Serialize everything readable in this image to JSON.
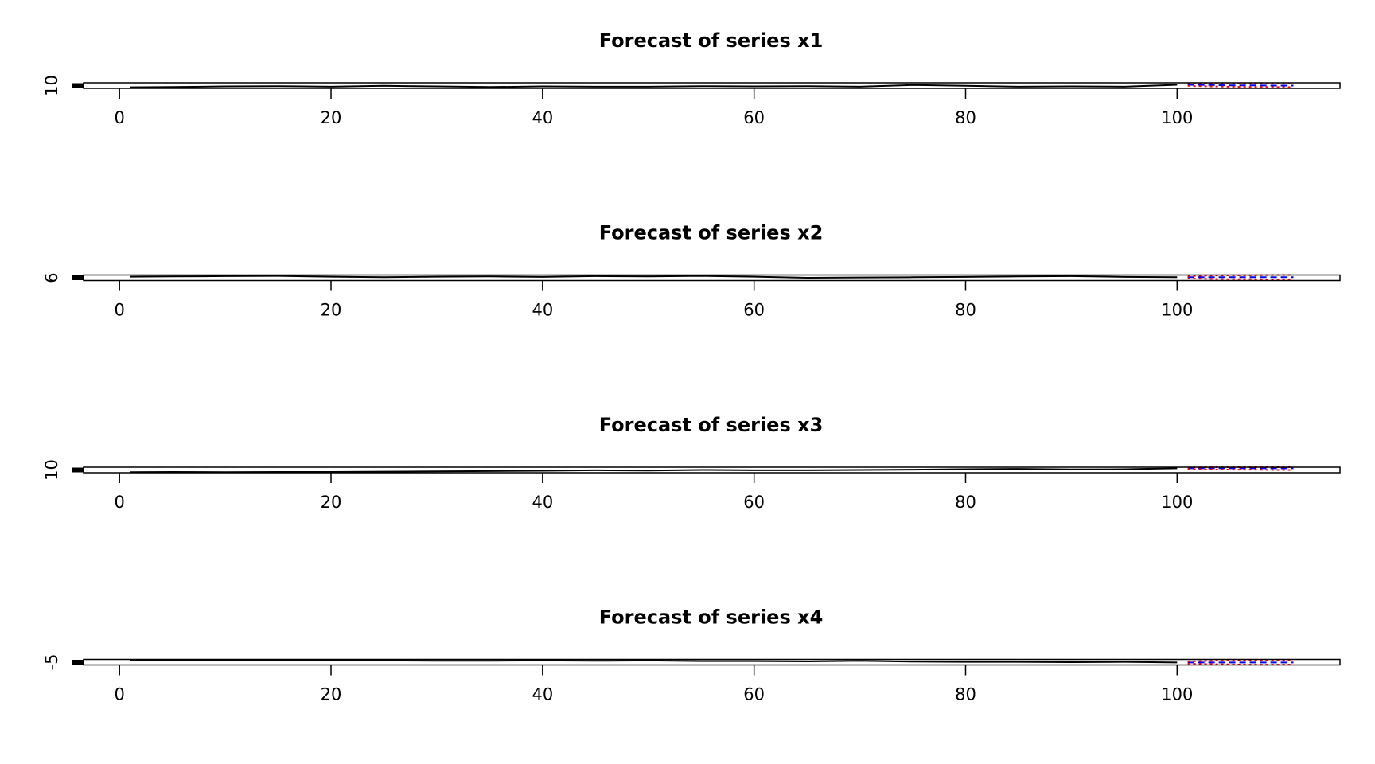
{
  "chart_data": [
    {
      "type": "line",
      "title": "Forecast of series x1",
      "xlim": [
        -3.4,
        115.4
      ],
      "xticks": [
        0,
        20,
        40,
        60,
        80,
        100
      ],
      "ylim": [
        9,
        11
      ],
      "yticks": [
        10
      ],
      "series": [
        {
          "color": "#000000",
          "linestyle": "solid",
          "x": [
            1,
            5,
            10,
            15,
            20,
            25,
            30,
            35,
            40,
            45,
            50,
            55,
            60,
            65,
            70,
            75,
            80,
            85,
            90,
            95,
            100
          ],
          "values": [
            9.4,
            9.5,
            9.7,
            9.8,
            9.6,
            9.9,
            9.7,
            9.5,
            9.7,
            9.6,
            9.6,
            9.8,
            9.7,
            9.8,
            9.6,
            10.2,
            9.9,
            9.6,
            9.7,
            9.6,
            10.3
          ]
        },
        {
          "color": "#0000ff",
          "linestyle": "dashed",
          "x": [
            101,
            103,
            105,
            107,
            109,
            111
          ],
          "values": [
            10.3,
            10.2,
            10.1,
            10.1,
            10.0,
            10.0
          ]
        },
        {
          "color": "#ff0000",
          "linestyle": "dotted",
          "x": [
            101,
            103,
            105,
            107,
            109,
            111
          ],
          "values": [
            9.9,
            9.7,
            9.6,
            9.5,
            9.5,
            9.4
          ]
        },
        {
          "color": "#ff0000",
          "linestyle": "dotted",
          "x": [
            101,
            103,
            105,
            107,
            109,
            111
          ],
          "values": [
            10.7,
            10.7,
            10.7,
            10.7,
            10.7,
            10.7
          ]
        }
      ]
    },
    {
      "type": "line",
      "title": "Forecast of series x2",
      "xlim": [
        -3.4,
        115.4
      ],
      "xticks": [
        0,
        20,
        40,
        60,
        80,
        100
      ],
      "ylim": [
        5,
        7
      ],
      "yticks": [
        6
      ],
      "series": [
        {
          "color": "#000000",
          "linestyle": "solid",
          "x": [
            1,
            5,
            10,
            15,
            20,
            25,
            30,
            35,
            40,
            45,
            50,
            55,
            60,
            65,
            70,
            75,
            80,
            85,
            90,
            95,
            100
          ],
          "values": [
            6.4,
            6.5,
            6.6,
            6.7,
            6.4,
            6.2,
            6.4,
            6.5,
            6.3,
            6.6,
            6.5,
            6.7,
            6.4,
            6.0,
            6.1,
            6.2,
            6.3,
            6.5,
            6.6,
            6.3,
            6.2
          ]
        },
        {
          "color": "#0000ff",
          "linestyle": "dashed",
          "x": [
            101,
            103,
            105,
            107,
            109,
            111
          ],
          "values": [
            6.2,
            6.2,
            6.2,
            6.2,
            6.2,
            6.2
          ]
        },
        {
          "color": "#ff0000",
          "linestyle": "dotted",
          "x": [
            101,
            103,
            105,
            107,
            109,
            111
          ],
          "values": [
            5.8,
            5.6,
            5.5,
            5.5,
            5.4,
            5.4
          ]
        },
        {
          "color": "#ff0000",
          "linestyle": "dotted",
          "x": [
            101,
            103,
            105,
            107,
            109,
            111
          ],
          "values": [
            6.6,
            6.8,
            6.9,
            6.9,
            7.0,
            7.0
          ]
        }
      ]
    },
    {
      "type": "line",
      "title": "Forecast of series x3",
      "xlim": [
        -3.4,
        115.4
      ],
      "xticks": [
        0,
        20,
        40,
        60,
        80,
        100
      ],
      "ylim": [
        9,
        11
      ],
      "yticks": [
        10
      ],
      "series": [
        {
          "color": "#000000",
          "linestyle": "solid",
          "x": [
            1,
            5,
            10,
            15,
            20,
            25,
            30,
            35,
            40,
            45,
            50,
            55,
            60,
            65,
            70,
            75,
            80,
            85,
            90,
            95,
            100
          ],
          "values": [
            9.2,
            9.3,
            9.2,
            9.3,
            9.3,
            9.4,
            9.5,
            9.6,
            9.7,
            9.9,
            9.8,
            10.0,
            9.9,
            9.9,
            10.0,
            10.1,
            10.3,
            10.4,
            10.2,
            10.3,
            10.6
          ]
        },
        {
          "color": "#0000ff",
          "linestyle": "dashed",
          "x": [
            101,
            103,
            105,
            107,
            109,
            111
          ],
          "values": [
            10.6,
            10.6,
            10.6,
            10.6,
            10.6,
            10.6
          ]
        },
        {
          "color": "#ff0000",
          "linestyle": "dotted",
          "x": [
            101,
            103,
            105,
            107,
            109,
            111
          ],
          "values": [
            10.3,
            10.2,
            10.1,
            10.1,
            10.0,
            10.0
          ]
        },
        {
          "color": "#ff0000",
          "linestyle": "dotted",
          "x": [
            101,
            103,
            105,
            107,
            109,
            111
          ],
          "values": [
            10.9,
            11.0,
            11.0,
            11.0,
            11.0,
            11.0
          ]
        }
      ]
    },
    {
      "type": "line",
      "title": "Forecast of series x4",
      "xlim": [
        -3.4,
        115.4
      ],
      "xticks": [
        0,
        20,
        40,
        60,
        80,
        100
      ],
      "ylim": [
        -6,
        -4
      ],
      "yticks": [
        -5
      ],
      "series": [
        {
          "color": "#000000",
          "linestyle": "solid",
          "x": [
            1,
            5,
            10,
            15,
            20,
            25,
            30,
            35,
            40,
            45,
            50,
            55,
            60,
            65,
            70,
            75,
            80,
            85,
            90,
            95,
            100
          ],
          "values": [
            -4.3,
            -4.4,
            -4.4,
            -4.3,
            -4.4,
            -4.4,
            -4.5,
            -4.5,
            -4.4,
            -4.5,
            -4.4,
            -4.6,
            -4.6,
            -4.7,
            -4.5,
            -4.8,
            -4.9,
            -4.9,
            -5.0,
            -4.9,
            -5.1
          ]
        },
        {
          "color": "#0000ff",
          "linestyle": "dashed",
          "x": [
            101,
            103,
            105,
            107,
            109,
            111
          ],
          "values": [
            -5.1,
            -5.1,
            -5.1,
            -5.1,
            -5.1,
            -5.1
          ]
        },
        {
          "color": "#ff0000",
          "linestyle": "dotted",
          "x": [
            101,
            103,
            105,
            107,
            109,
            111
          ],
          "values": [
            -5.5,
            -5.7,
            -5.8,
            -5.9,
            -5.9,
            -5.9
          ]
        },
        {
          "color": "#ff0000",
          "linestyle": "dotted",
          "x": [
            101,
            103,
            105,
            107,
            109,
            111
          ],
          "values": [
            -4.7,
            -4.5,
            -4.4,
            -4.3,
            -4.3,
            -4.3
          ]
        }
      ]
    }
  ]
}
